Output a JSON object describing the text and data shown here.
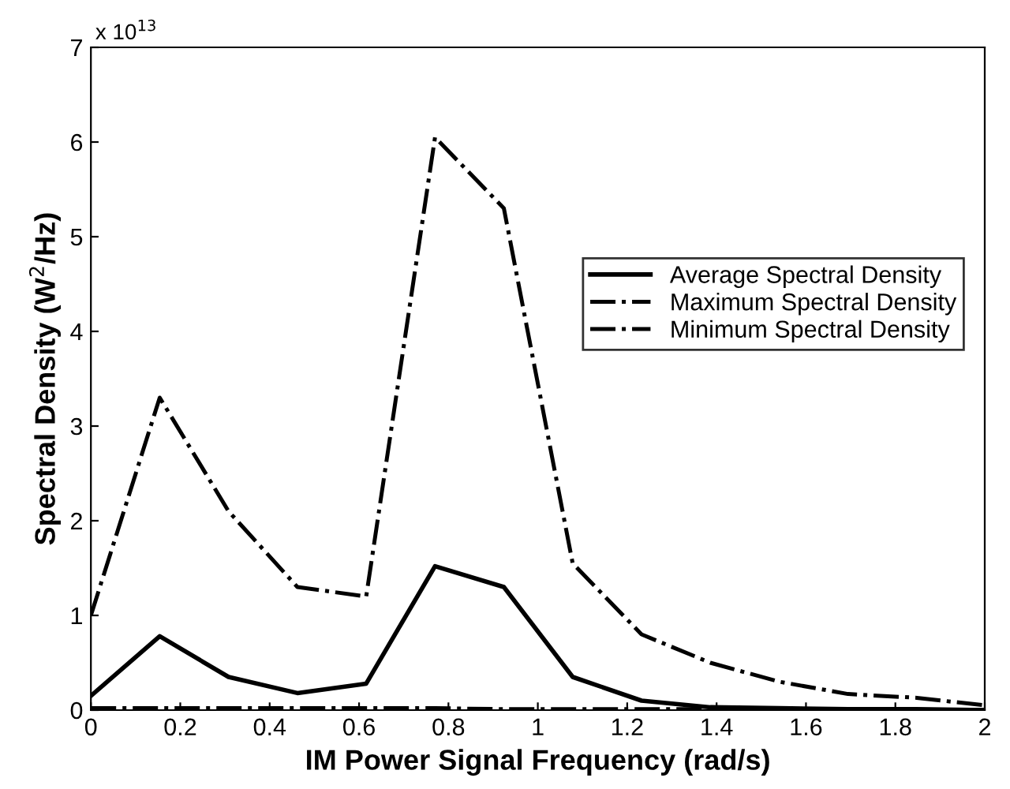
{
  "chart_data": {
    "type": "line",
    "xlabel": "IM Power Signal Frequency (rad/s)",
    "ylabel": "Spectral Density (W$^{2}$/Hz)",
    "annotations": [
      "x 10$^{13}$"
    ],
    "x": [
      0,
      0.154,
      0.308,
      0.462,
      0.616,
      0.77,
      0.924,
      1.078,
      1.232,
      1.386,
      1.54,
      1.694,
      1.848,
      2.0
    ],
    "series": [
      {
        "name": "Average Spectral Density",
        "color": "#000000",
        "line_style": "solid",
        "values": [
          0.15,
          0.78,
          0.35,
          0.18,
          0.28,
          1.52,
          1.3,
          0.35,
          0.1,
          0.03,
          0.02,
          0.01,
          0.01,
          0.0
        ]
      },
      {
        "name": "Maximum Spectral Density",
        "color": "#000000",
        "line_style": "dashdot",
        "values": [
          1.0,
          3.3,
          2.1,
          1.3,
          1.2,
          6.05,
          5.3,
          1.55,
          0.8,
          0.5,
          0.3,
          0.17,
          0.13,
          0.05
        ]
      },
      {
        "name": "Minimum Spectral Density",
        "color": "#000000",
        "line_style": "dashdot",
        "values": [
          0.02,
          0.02,
          0.02,
          0.02,
          0.02,
          0.02,
          0.01,
          0.01,
          0.01,
          0.01,
          0.01,
          0.0,
          0.0,
          0.0
        ]
      }
    ],
    "xlim": [
      0,
      2
    ],
    "xticks": [
      0,
      0.2,
      0.4,
      0.6,
      0.8,
      1,
      1.2,
      1.4,
      1.6,
      1.8,
      2
    ],
    "ylim": [
      0,
      7
    ],
    "yticks": [
      0,
      1,
      2,
      3,
      4,
      5,
      6,
      7
    ],
    "grid": false,
    "legend": "right"
  }
}
